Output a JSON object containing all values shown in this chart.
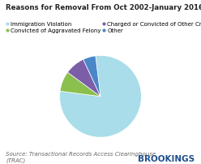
{
  "title": "Reasons for Removal From Oct 2002-January 2016",
  "slices": [
    {
      "label": "Immigration Violation",
      "value": 79,
      "color": "#a8dde9"
    },
    {
      "label": "Convicted of Aggravated Felony",
      "value": 8,
      "color": "#8bbf4e"
    },
    {
      "label": "Charged or Convicted of Other Crimes",
      "value": 8,
      "color": "#7b5ea7"
    },
    {
      "label": "Other",
      "value": 5,
      "color": "#4a86c8"
    }
  ],
  "source_text": "Source: Transactional Records Access Clearinghouse\n(TRAC)",
  "brookings_text": "BROOKINGS",
  "background_color": "#ffffff",
  "title_fontsize": 6.2,
  "legend_fontsize": 5.0,
  "source_fontsize": 5.0,
  "brookings_fontsize": 7.5
}
